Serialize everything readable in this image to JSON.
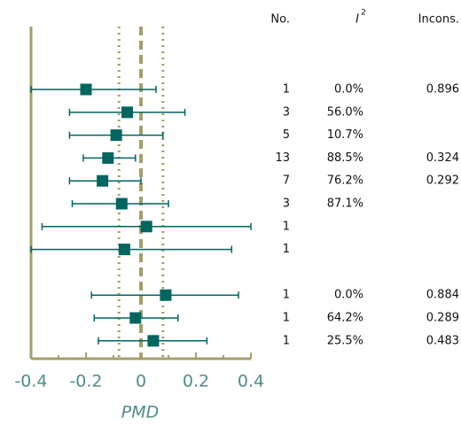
{
  "chart_data": {
    "type": "forest",
    "x_label": "PMD",
    "xlim": [
      -0.4,
      0.4
    ],
    "xticks": [
      -0.4,
      -0.2,
      0.0,
      0.2,
      0.4
    ],
    "minor_xticks": [
      -0.3,
      -0.1,
      0.1,
      0.3
    ],
    "reference_lines": [
      -0.08,
      0,
      0.08
    ],
    "color": "#00665f",
    "axis_color": "#a39f6a",
    "estimate": [
      -0.2,
      -0.05,
      -0.09,
      -0.12,
      -0.14,
      -0.07,
      0.02,
      -0.06,
      null,
      0.09,
      -0.02,
      0.045
    ],
    "lower": [
      -0.4,
      -0.26,
      -0.26,
      -0.21,
      -0.26,
      -0.25,
      -0.36,
      -0.4,
      null,
      -0.18,
      -0.17,
      -0.155
    ],
    "upper": [
      0.055,
      0.16,
      0.08,
      -0.02,
      0.0,
      0.1,
      0.4,
      0.33,
      null,
      0.355,
      0.135,
      0.24
    ],
    "columns": {
      "no_header": "No.",
      "i2_header": "I",
      "i2_header_sup": "2",
      "incons_header": "Incons.",
      "no": [
        1,
        3,
        5,
        13,
        7,
        3,
        1,
        1,
        null,
        1,
        1,
        1
      ],
      "i2": [
        0,
        56,
        10.7,
        88.5,
        76.2,
        87.1,
        null,
        null,
        null,
        0,
        64.2,
        25.5
      ],
      "i2_labels": [
        "0.0%",
        "56.0%",
        "10.7%",
        "88.5%",
        "76.2%",
        "87.1%",
        null,
        null,
        null,
        "0.0%",
        "64.2%",
        "25.5%"
      ],
      "incons": [
        0.896,
        null,
        null,
        0.324,
        0.292,
        null,
        null,
        null,
        null,
        0.884,
        0.289,
        0.483
      ]
    }
  }
}
